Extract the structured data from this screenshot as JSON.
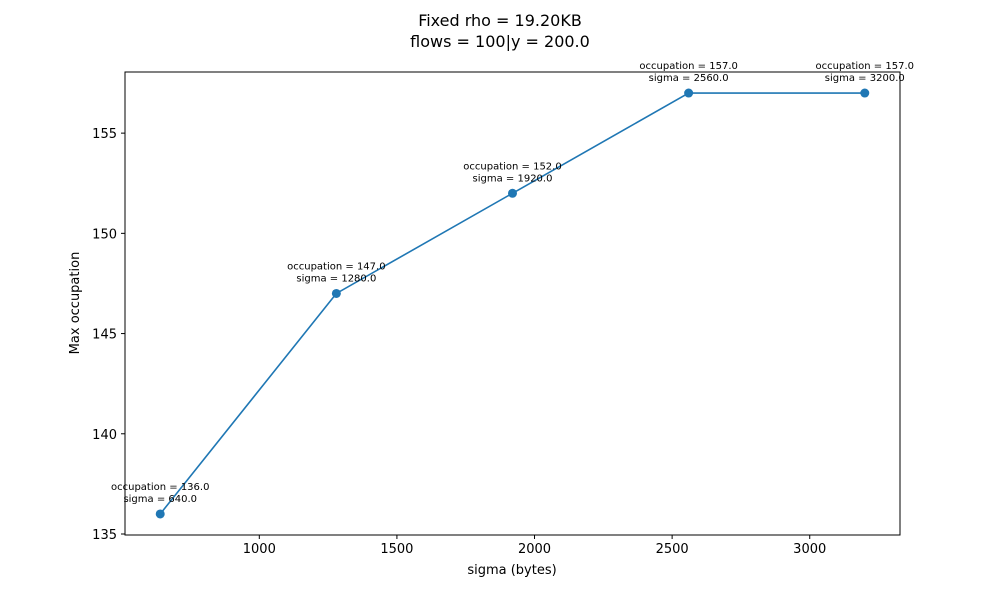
{
  "chart_data": {
    "type": "line",
    "title_lines": [
      "Fixed rho = 19.20KB",
      "flows = 100|y = 200.0"
    ],
    "xlabel": "sigma (bytes)",
    "ylabel": "Max occupation",
    "xlim": [
      512,
      3328
    ],
    "ylim": [
      134.95,
      158.05
    ],
    "x_ticks": [
      1000,
      1500,
      2000,
      2500,
      3000
    ],
    "y_ticks": [
      135,
      140,
      145,
      150,
      155
    ],
    "grid": false,
    "legend": "none",
    "series": [
      {
        "color": "#1f77b4",
        "x": [
          640,
          1280,
          1920,
          2560,
          3200
        ],
        "y": [
          136,
          147,
          152,
          157,
          157
        ]
      }
    ],
    "annotations": [
      {
        "line1": "occupation = 136.0",
        "line2": "sigma = 640.0"
      },
      {
        "line1": "occupation = 147.0",
        "line2": "sigma = 1280.0"
      },
      {
        "line1": "occupation = 152.0",
        "line2": "sigma = 1920.0"
      },
      {
        "line1": "occupation = 157.0",
        "line2": "sigma = 2560.0"
      },
      {
        "line1": "occupation = 157.0",
        "line2": "sigma = 3200.0"
      }
    ]
  }
}
